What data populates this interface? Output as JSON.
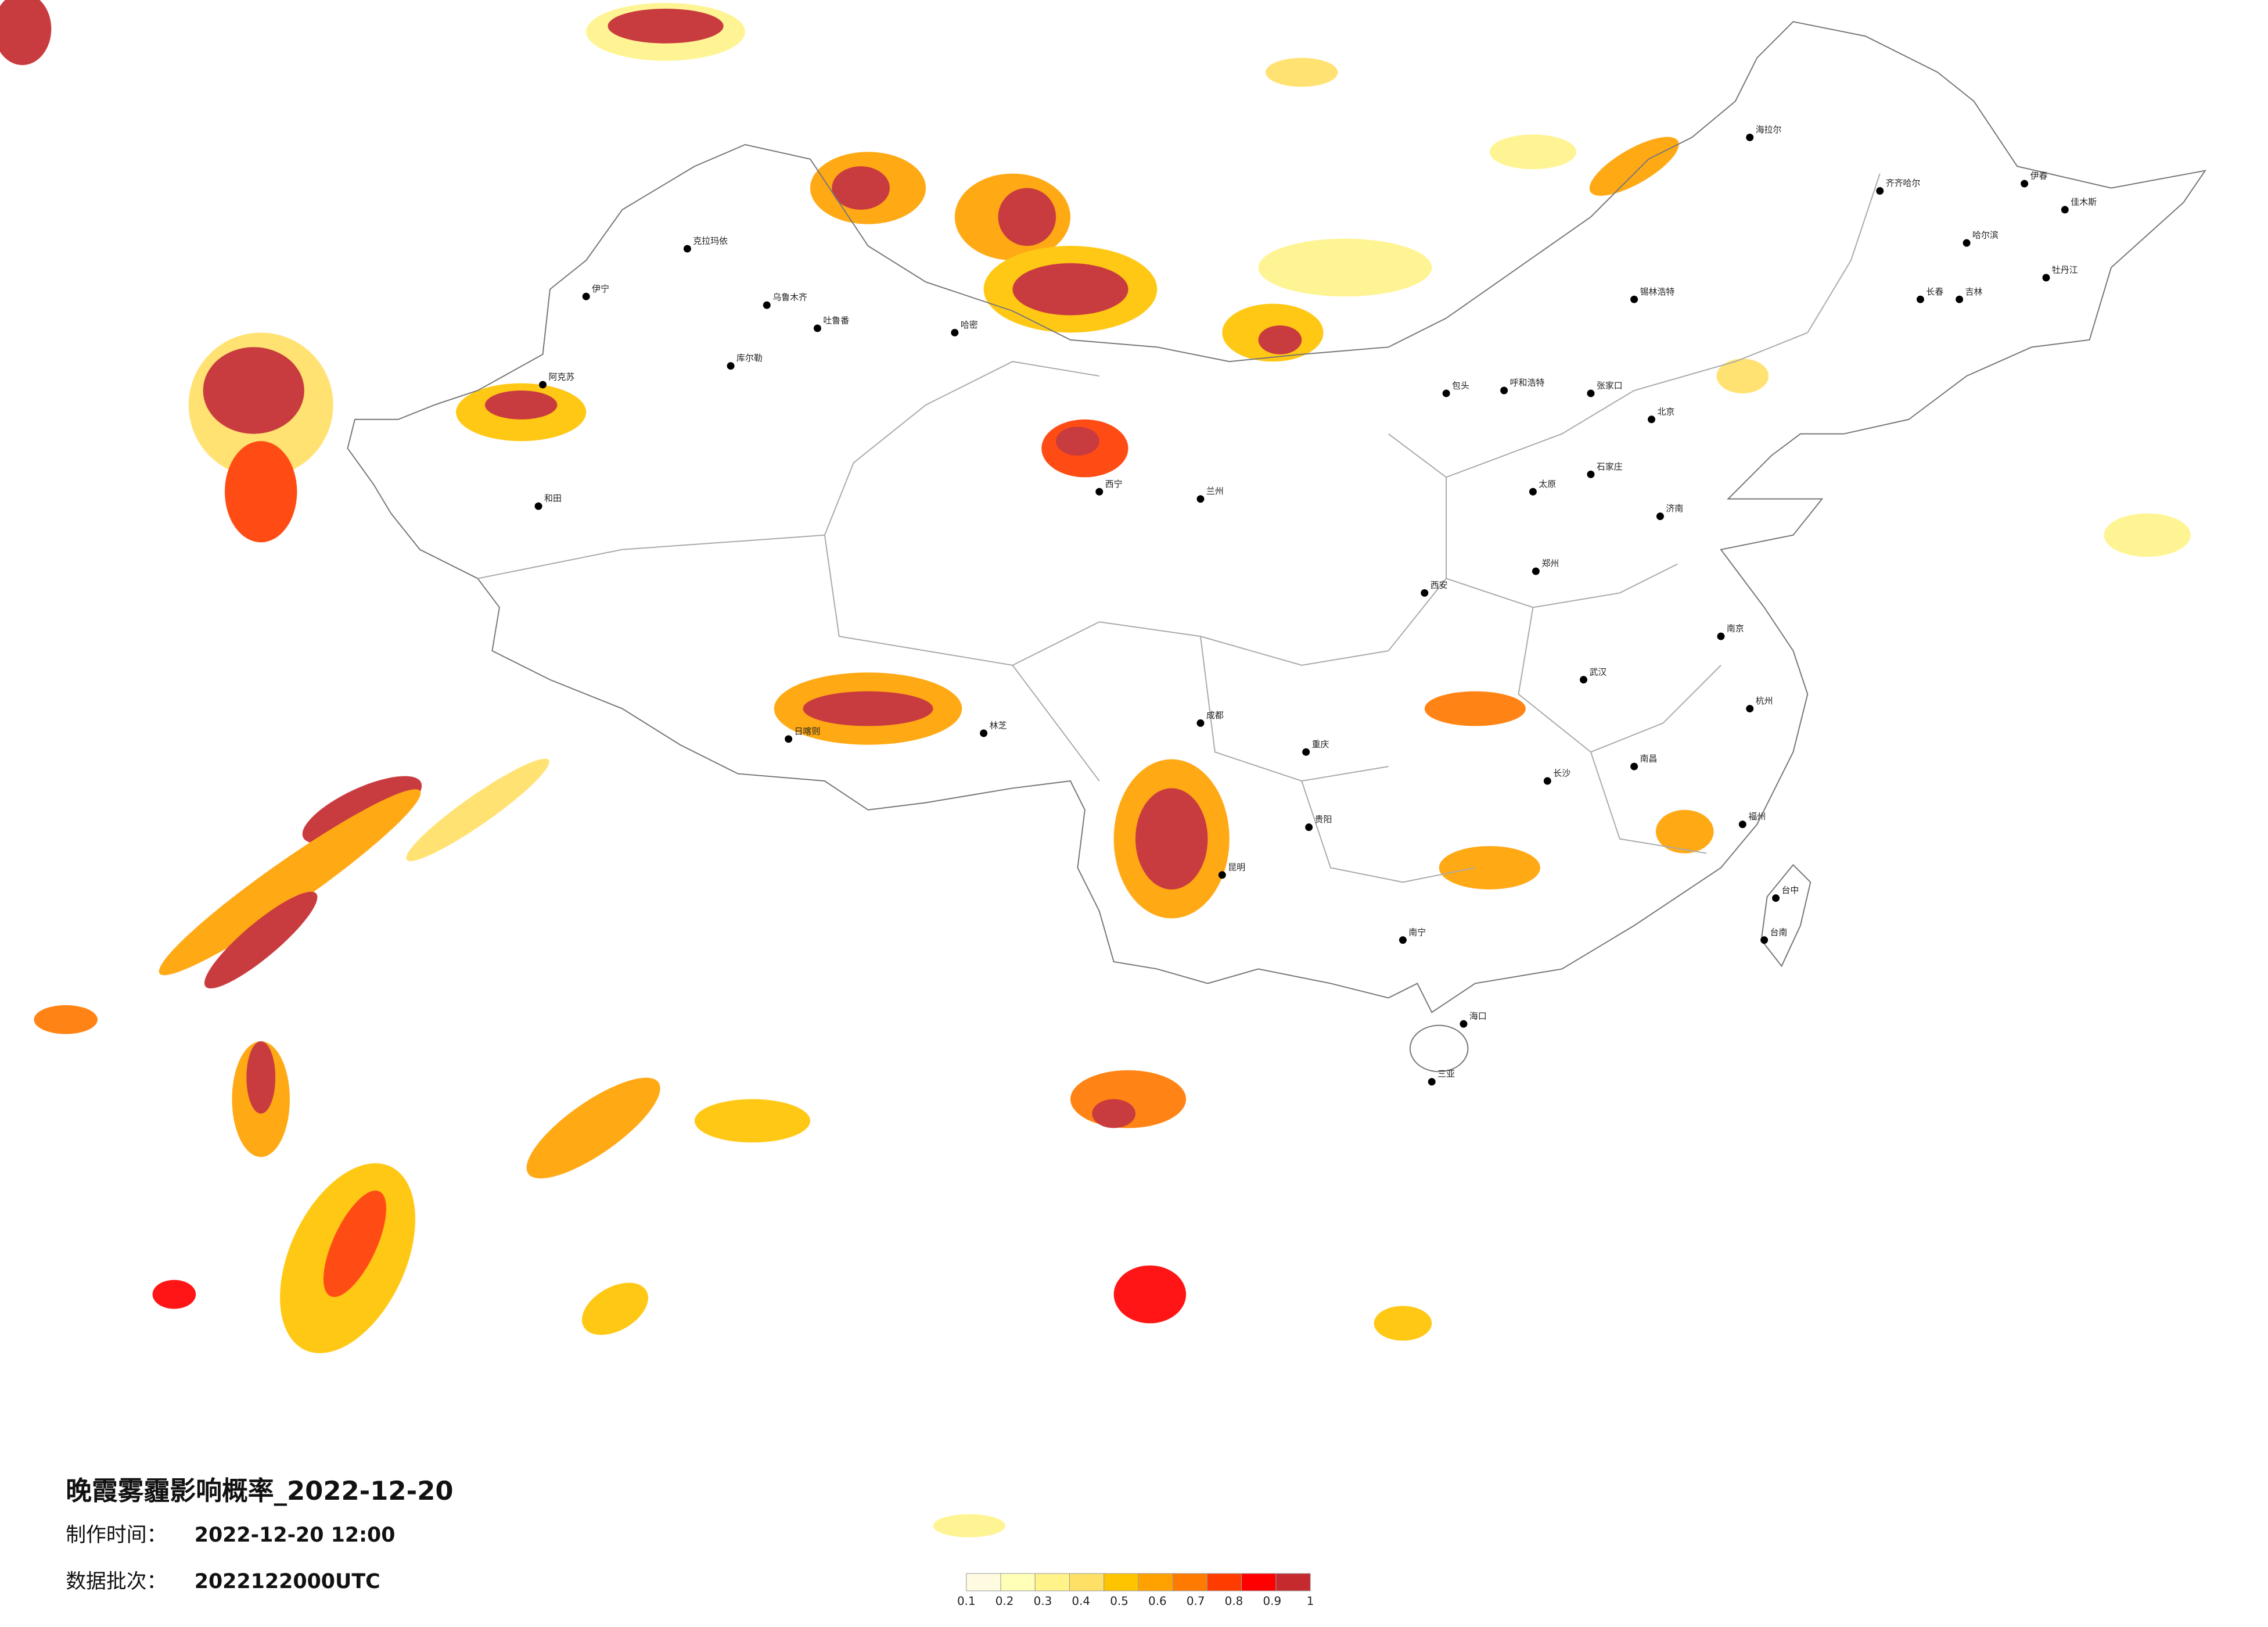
{
  "title": "晚霞雾霾影响概率_2022-12-20",
  "production": {
    "label": "制作时间：",
    "value": "2022-12-20 12:00"
  },
  "batch": {
    "label": "数据批次：",
    "value": "2022122000UTC"
  },
  "legend": {
    "colors": [
      "#fffbe0",
      "#ffffb8",
      "#fff38a",
      "#ffe066",
      "#ffc400",
      "#ffa200",
      "#ff7a00",
      "#ff3c00",
      "#ff0000",
      "#c42a2e"
    ],
    "ticks": [
      0.1,
      0.2,
      0.3,
      0.4,
      0.5,
      0.6,
      0.7,
      0.8,
      0.9,
      1
    ]
  },
  "cities": [
    "海拉尔",
    "齐齐哈尔",
    "伊春",
    "佳木斯",
    "哈尔滨",
    "牡丹江",
    "长春",
    "吉林",
    "锡林浩特",
    "呼和浩特",
    "包头",
    "张家口",
    "北京",
    "石家庄",
    "太原",
    "济南",
    "郑州",
    "西安",
    "兰州",
    "西宁",
    "乌鲁木齐",
    "克拉玛依",
    "伊宁",
    "吐鲁番",
    "哈密",
    "库尔勒",
    "阿克苏",
    "和田",
    "日喀则",
    "林芝",
    "成都",
    "重庆",
    "贵阳",
    "昆明",
    "南宁",
    "长沙",
    "武汉",
    "南京",
    "杭州",
    "南昌",
    "福州",
    "台中",
    "台南",
    "海口",
    "三亚"
  ]
}
